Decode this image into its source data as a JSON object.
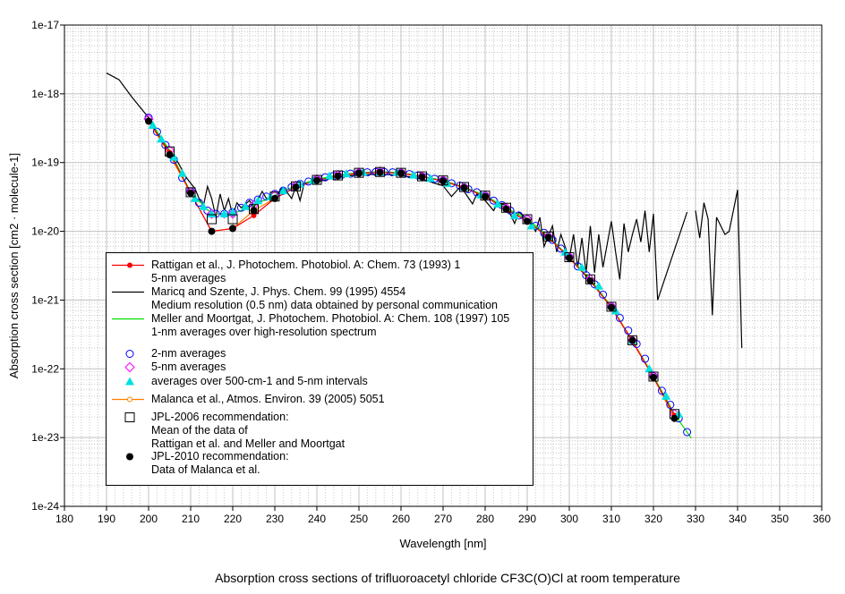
{
  "chart_data": {
    "type": "line",
    "title": "Absorption cross sections of trifluoroacetyl chloride CF3C(O)Cl at room temperature",
    "xlabel": "Wavelength [nm]",
    "ylabel": "Absorption cross section [cm2 · molecule-1]",
    "xlim": [
      180,
      360
    ],
    "ylim": [
      1e-24,
      1e-17
    ],
    "yscale": "log",
    "grid": true,
    "xticks": [
      180,
      190,
      200,
      210,
      220,
      230,
      240,
      250,
      260,
      270,
      280,
      290,
      300,
      310,
      320,
      330,
      340,
      350,
      360
    ],
    "yticks": [
      "1e-24",
      "1e-23",
      "1e-22",
      "1e-21",
      "1e-20",
      "1e-19",
      "1e-18",
      "1e-17"
    ],
    "legend_position": "bottom-left",
    "series": [
      {
        "name": "Rattigan et al., J. Photochem. Photobiol. A: Chem. 73 (1993) 1",
        "sub": "5-nm averages",
        "color": "#ff0000",
        "marker": "dot",
        "x": [
          200,
          205,
          210,
          215,
          220,
          225,
          230,
          235,
          240,
          245,
          250,
          255,
          260,
          265,
          270,
          275,
          280,
          285,
          290,
          295,
          300,
          305,
          310,
          315,
          320,
          325
        ],
        "y": [
          4e-19,
          1.4e-19,
          3.6e-20,
          1e-20,
          1.1e-20,
          1.7e-20,
          3e-20,
          4.4e-20,
          5.5e-20,
          6.4e-20,
          7e-20,
          7.2e-20,
          7e-20,
          6.2e-20,
          5.4e-20,
          4.3e-20,
          3.2e-20,
          2.1e-20,
          1.4e-20,
          8.2e-21,
          4.1e-21,
          1.9e-21,
          7.8e-22,
          2.5e-22,
          7.5e-23,
          2.1e-23
        ]
      },
      {
        "name": "Maricq and Szente, J. Phys. Chem. 99 (1995) 4554",
        "sub": "Medium resolution (0.5 nm) data obtained by personal communication",
        "color": "#000000",
        "marker": "none",
        "x": [
          190,
          193,
          196,
          200,
          203,
          205,
          207,
          209,
          211,
          212,
          213,
          214,
          215,
          216,
          217,
          218,
          219,
          220,
          221,
          222,
          224,
          225,
          227,
          228,
          230,
          232,
          234,
          235,
          236,
          237,
          240,
          245,
          250,
          255,
          260,
          265,
          268,
          270,
          272,
          274,
          275,
          277,
          278,
          280,
          282,
          283,
          285,
          287,
          288,
          290,
          292,
          293,
          294,
          296,
          297,
          298,
          300,
          301,
          302,
          303,
          304,
          305,
          306,
          307,
          308,
          310,
          311,
          312,
          313,
          314,
          315,
          316,
          317,
          318,
          319,
          320,
          321,
          328,
          329,
          330,
          331,
          332,
          333,
          334,
          335,
          337,
          338,
          339,
          340,
          341
        ],
        "y": [
          2e-18,
          1.6e-18,
          9e-19,
          4.5e-19,
          2.2e-19,
          1.5e-19,
          1e-19,
          6e-20,
          4.2e-20,
          3e-20,
          2.3e-20,
          4.5e-20,
          3e-20,
          1.6e-20,
          3.5e-20,
          2e-20,
          3e-20,
          1.7e-20,
          2.6e-20,
          2.2e-20,
          2.8e-20,
          2.2e-20,
          3.8e-20,
          3e-20,
          3.2e-20,
          4.4e-20,
          3e-20,
          4.5e-20,
          2.8e-20,
          5e-20,
          5.2e-20,
          6.2e-20,
          6.6e-20,
          6.8e-20,
          6.5e-20,
          5.8e-20,
          5e-20,
          4.6e-20,
          3.2e-20,
          4.4e-20,
          3.8e-20,
          2.5e-20,
          3.5e-20,
          2.8e-20,
          2e-20,
          2.6e-20,
          2.4e-20,
          1.3e-20,
          1.9e-20,
          1.5e-20,
          1e-20,
          1.6e-20,
          6e-21,
          1.2e-20,
          5e-21,
          9e-21,
          4e-21,
          9e-21,
          3e-21,
          8e-21,
          2.5e-21,
          1.2e-20,
          2.5e-21,
          9e-21,
          3e-21,
          1.4e-20,
          5e-21,
          2e-21,
          1.3e-20,
          5e-21,
          9e-21,
          1.5e-20,
          7e-21,
          2e-20,
          5e-21,
          1.8e-20,
          1e-21,
          1.9e-20,
          null,
          2e-20,
          8e-21,
          2.6e-20,
          1.5e-20,
          6e-22,
          1.6e-20,
          9e-21,
          1e-20,
          2e-20,
          4e-20,
          2e-22
        ]
      },
      {
        "name": "Meller and Moortgat, J. Photochem. Photobiol. A: Chem. 108 (1997) 105",
        "sub": "1-nm averages over high-resolution spectrum",
        "color": "#00e000",
        "marker": "none",
        "x": [
          200,
          205,
          210,
          215,
          220,
          225,
          230,
          235,
          240,
          245,
          250,
          255,
          260,
          265,
          270,
          275,
          280,
          285,
          290,
          295,
          300,
          305,
          310,
          315,
          320,
          325,
          329
        ],
        "y": [
          4.3e-19,
          1.5e-19,
          3.7e-20,
          1.8e-20,
          1.8e-20,
          2.4e-20,
          3.3e-20,
          4.6e-20,
          5.7e-20,
          6.6e-20,
          7.1e-20,
          7.4e-20,
          7.1e-20,
          6.3e-20,
          5.5e-20,
          4.4e-20,
          3.3e-20,
          2.2e-20,
          1.5e-20,
          8.5e-21,
          4.2e-21,
          2e-21,
          8e-22,
          2.6e-22,
          7.8e-23,
          2.2e-23,
          9.8e-24
        ]
      },
      {
        "name": "2-nm averages",
        "color": "#0000ff",
        "marker": "circle",
        "x": [
          200,
          202,
          204,
          206,
          208,
          210,
          212,
          214,
          216,
          218,
          220,
          222,
          224,
          226,
          228,
          230,
          232,
          234,
          236,
          238,
          240,
          242,
          244,
          246,
          248,
          250,
          252,
          254,
          256,
          258,
          260,
          262,
          264,
          266,
          268,
          270,
          272,
          274,
          276,
          278,
          280,
          282,
          284,
          286,
          288,
          290,
          292,
          294,
          296,
          298,
          300,
          302,
          304,
          306,
          308,
          310,
          312,
          314,
          316,
          318,
          320,
          322,
          324,
          326,
          328
        ],
        "y": [
          4.5e-19,
          2.8e-19,
          1.8e-19,
          1.1e-19,
          6e-20,
          3.8e-20,
          2.6e-20,
          2e-20,
          1.8e-20,
          1.8e-20,
          1.9e-20,
          2.2e-20,
          2.6e-20,
          2.9e-20,
          3.2e-20,
          3.5e-20,
          3.9e-20,
          4.4e-20,
          4.9e-20,
          5.3e-20,
          5.7e-20,
          6.1e-20,
          6.4e-20,
          6.7e-20,
          6.9e-20,
          7.1e-20,
          7.2e-20,
          7.3e-20,
          7.3e-20,
          7.2e-20,
          7.1e-20,
          6.8e-20,
          6.5e-20,
          6.1e-20,
          5.8e-20,
          5.5e-20,
          5e-20,
          4.6e-20,
          4.1e-20,
          3.7e-20,
          3.3e-20,
          2.8e-20,
          2.4e-20,
          2e-20,
          1.7e-20,
          1.5e-20,
          1.2e-20,
          9.5e-21,
          7.5e-21,
          5.6e-21,
          4.2e-21,
          3.1e-21,
          2.3e-21,
          1.7e-21,
          1.2e-21,
          8e-22,
          5.5e-22,
          3.6e-22,
          2.3e-22,
          1.4e-22,
          7.8e-23,
          4.8e-23,
          3e-23,
          1.9e-23,
          1.2e-23
        ]
      },
      {
        "name": "5-nm averages",
        "color": "#ff00ff",
        "marker": "diamond",
        "x": [
          200,
          205,
          210,
          215,
          220,
          225,
          230,
          235,
          240,
          245,
          250,
          255,
          260,
          265,
          270,
          275,
          280,
          285,
          290,
          295,
          300,
          305,
          310,
          315,
          320,
          325
        ],
        "y": [
          4.3e-19,
          1.5e-19,
          3.7e-20,
          1.8e-20,
          1.8e-20,
          2.4e-20,
          3.3e-20,
          4.6e-20,
          5.7e-20,
          6.6e-20,
          7.1e-20,
          7.4e-20,
          7.1e-20,
          6.3e-20,
          5.5e-20,
          4.4e-20,
          3.3e-20,
          2.2e-20,
          1.5e-20,
          8.5e-21,
          4.2e-21,
          2e-21,
          8e-22,
          2.6e-22,
          7.8e-23,
          2.2e-23
        ]
      },
      {
        "name": "averages over 500-cm-1 and 5-nm intervals",
        "color": "#00e0e0",
        "marker": "triangle",
        "x": [
          201,
          203,
          206,
          208,
          211,
          213,
          215,
          218,
          220,
          223,
          226,
          229,
          232,
          236,
          239,
          243,
          247,
          251,
          255,
          259,
          263,
          267,
          271,
          275,
          279,
          283,
          287,
          291,
          295,
          299,
          303,
          307,
          311,
          315,
          319,
          323,
          326
        ],
        "y": [
          3.5e-19,
          2.2e-19,
          1.2e-19,
          7e-20,
          3e-20,
          2.3e-20,
          1.8e-20,
          1.8e-20,
          1.9e-20,
          2.3e-20,
          2.8e-20,
          3.2e-20,
          3.9e-20,
          4.9e-20,
          5.5e-20,
          6.4e-20,
          6.9e-20,
          7.2e-20,
          7.3e-20,
          7.2e-20,
          6.6e-20,
          5.9e-20,
          5e-20,
          4.4e-20,
          3.4e-20,
          2.5e-20,
          1.7e-20,
          1.2e-20,
          8.5e-21,
          5e-21,
          3e-21,
          1.6e-21,
          7e-22,
          2.6e-22,
          1e-22,
          4e-23,
          2.2e-23
        ]
      },
      {
        "name": "Malanca et al., Atmos. Environ. 39 (2005) 5051",
        "color": "#ff8000",
        "marker": "smallcircle",
        "x": [
          200,
          205,
          210,
          215,
          220,
          225,
          230,
          235,
          240,
          245,
          250,
          255,
          260,
          265,
          270,
          275,
          280,
          285,
          290,
          295,
          300,
          305,
          310,
          315,
          320,
          325
        ],
        "y": [
          4e-19,
          1.3e-19,
          3.6e-20,
          1e-20,
          1.1e-20,
          2e-20,
          3e-20,
          4.4e-20,
          5.5e-20,
          6.4e-20,
          7e-20,
          7.2e-20,
          7e-20,
          6.2e-20,
          5.4e-20,
          4.3e-20,
          3.2e-20,
          2.1e-20,
          1.4e-20,
          8.2e-21,
          4.1e-21,
          1.9e-21,
          7.8e-22,
          2.6e-22,
          7.5e-23,
          1.9e-23
        ]
      },
      {
        "name": "JPL-2006 recommendation:",
        "sub": "Mean of the data of",
        "sub2": "Rattigan et al. and Meller and  Moortgat",
        "color": "#000000",
        "marker": "square",
        "x": [
          205,
          210,
          215,
          220,
          225,
          230,
          235,
          240,
          245,
          250,
          255,
          260,
          265,
          270,
          275,
          280,
          285,
          290,
          295,
          300,
          305,
          310,
          315,
          320,
          325
        ],
        "y": [
          1.45e-19,
          3.7e-20,
          1.5e-20,
          1.5e-20,
          2.1e-20,
          3.2e-20,
          4.5e-20,
          5.6e-20,
          6.5e-20,
          7.1e-20,
          7.3e-20,
          7.1e-20,
          6.3e-20,
          5.5e-20,
          4.4e-20,
          3.3e-20,
          2.2e-20,
          1.5e-20,
          8.4e-21,
          4.2e-21,
          2e-21,
          8e-22,
          2.6e-22,
          7.7e-23,
          2.2e-23
        ]
      },
      {
        "name": "JPL-2010 recommendation:",
        "sub": "Data of Malanca et al.",
        "color": "#000000",
        "marker": "bigdot",
        "x": [
          200,
          205,
          210,
          215,
          220,
          225,
          230,
          235,
          240,
          245,
          250,
          255,
          260,
          265,
          270,
          275,
          280,
          285,
          290,
          295,
          300,
          305,
          310,
          315,
          320,
          325
        ],
        "y": [
          4e-19,
          1.3e-19,
          3.6e-20,
          1e-20,
          1.1e-20,
          2e-20,
          3e-20,
          4.4e-20,
          5.5e-20,
          6.4e-20,
          7e-20,
          7.2e-20,
          7e-20,
          6.2e-20,
          5.4e-20,
          4.3e-20,
          3.2e-20,
          2.1e-20,
          1.4e-20,
          8.2e-21,
          4.1e-21,
          1.9e-21,
          7.8e-22,
          2.6e-22,
          7.5e-23,
          1.9e-23
        ]
      }
    ]
  }
}
